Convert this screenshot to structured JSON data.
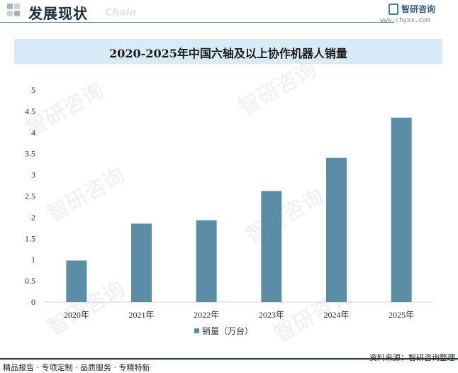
{
  "header": {
    "title": "发展现状",
    "subtitle": "Chain"
  },
  "brand": {
    "name": "智研咨询",
    "url": "www.chyxx.com"
  },
  "watermark": "智研咨询",
  "chart_data": {
    "type": "bar",
    "title": "2020-2025年中国六轴及以上协作机器人销量",
    "categories": [
      "2020年",
      "2021年",
      "2022年",
      "2023年",
      "2024年",
      "2025年"
    ],
    "series": [
      {
        "name": "销量（万台）",
        "values": [
          0.98,
          1.85,
          1.93,
          2.62,
          3.4,
          4.35
        ],
        "color": "#5b8ea6"
      }
    ],
    "ylim": [
      0,
      5
    ],
    "yticks": [
      "0",
      "0.5",
      "1",
      "1.5",
      "2",
      "2.5",
      "3",
      "3.5",
      "4",
      "4.5",
      "5"
    ],
    "grid": false,
    "legend": "bottom"
  },
  "footer": {
    "tags": "精品报告 · 专项定制 · 品质服务 · 专精特新",
    "source": "资料来源：智研咨询整理"
  }
}
